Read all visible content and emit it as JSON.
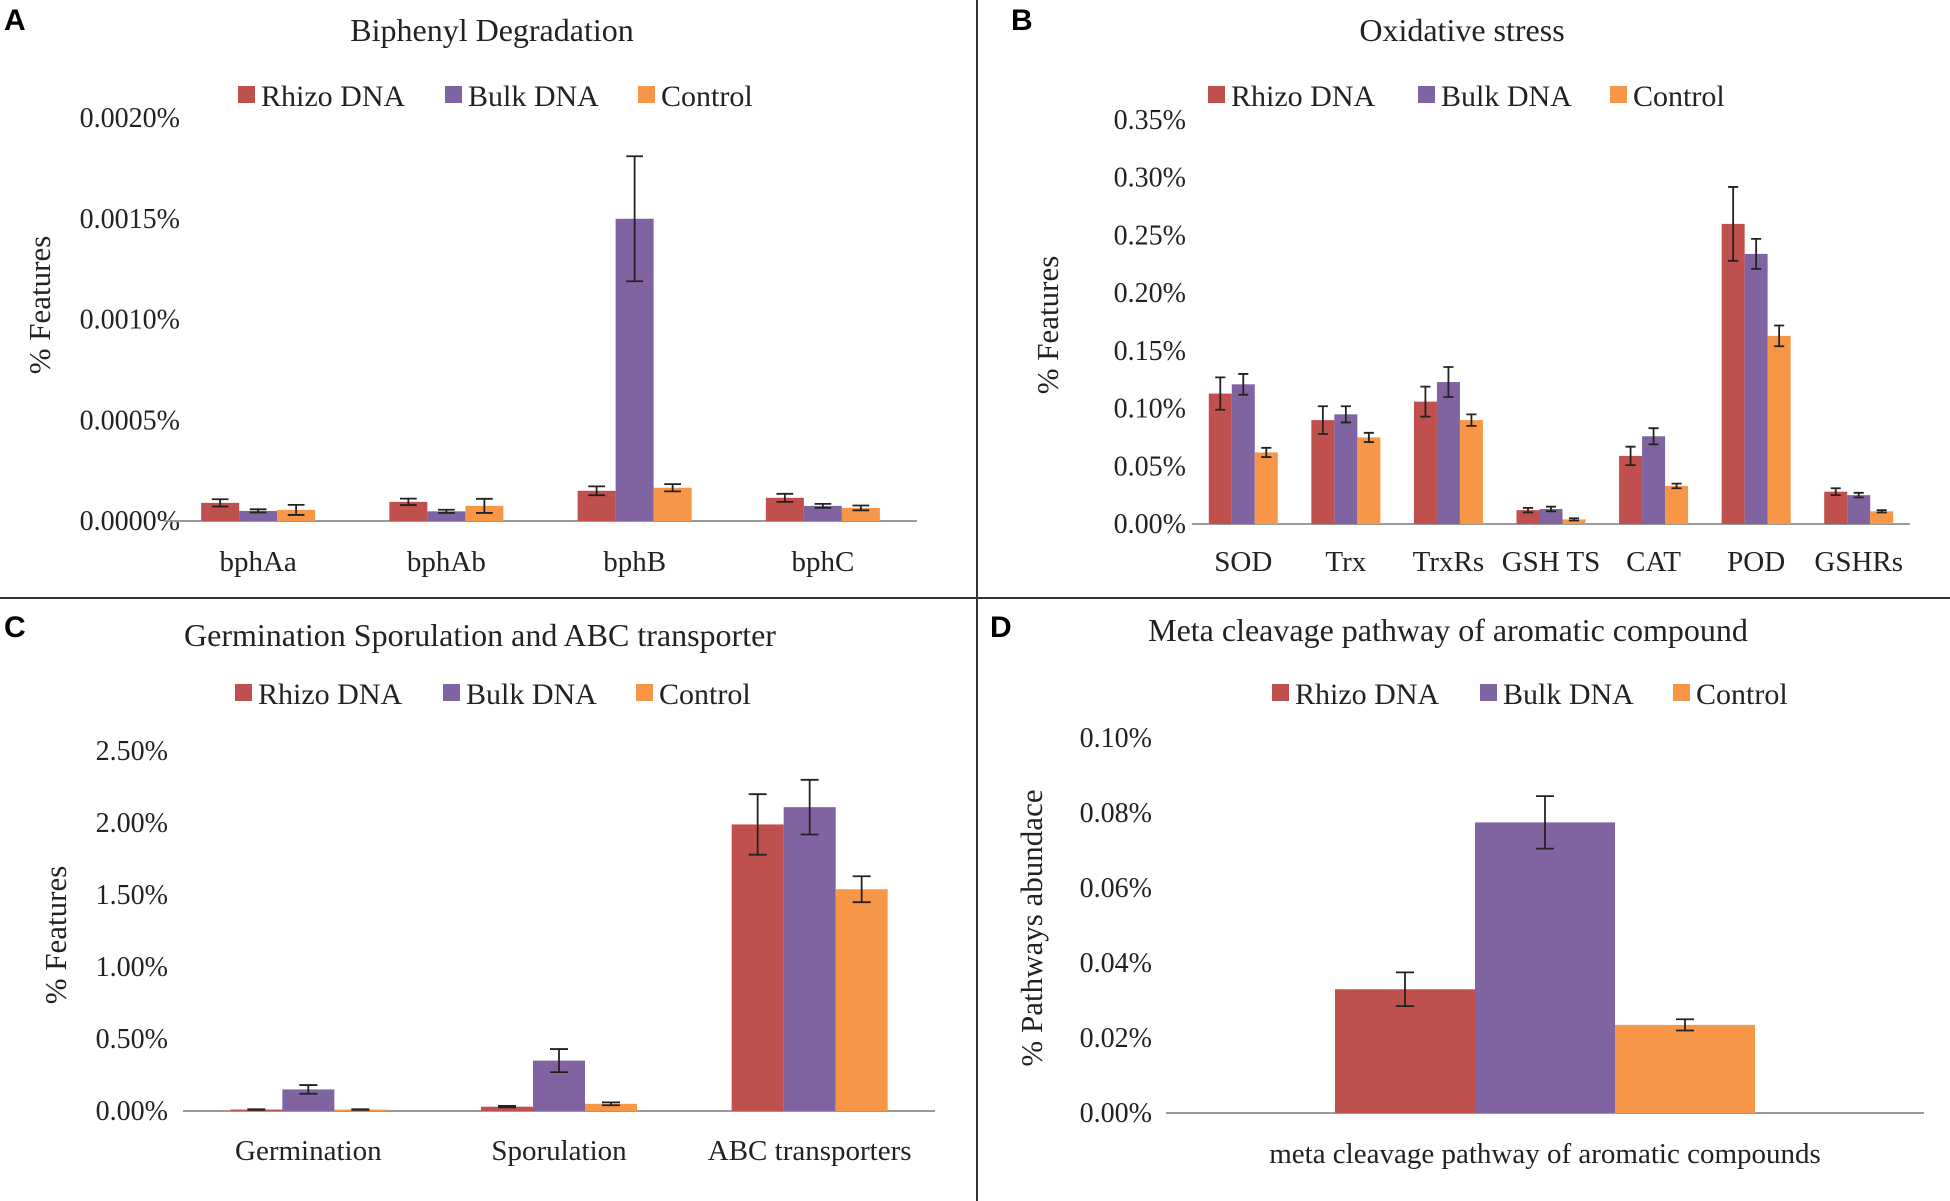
{
  "colors": {
    "rhizo": "#C0504D",
    "bulk": "#8064A2",
    "control": "#F79646"
  },
  "chart_data": [
    {
      "panel": "A",
      "type": "bar",
      "title": "Biphenyl Degradation",
      "ylabel": "% Features",
      "xlabel": "",
      "legend": [
        "Rhizo DNA",
        "Bulk DNA",
        "Control"
      ],
      "categories": [
        "bphAa",
        "bphAb",
        "bphB",
        "bphC"
      ],
      "ylim": [
        0,
        0.002
      ],
      "yticks": [
        0,
        0.0005,
        0.001,
        0.0015,
        0.002
      ],
      "ytick_labels": [
        "0.0000%",
        "0.0005%",
        "0.0010%",
        "0.0015%",
        "0.0020%"
      ],
      "series": [
        {
          "name": "Rhizo DNA",
          "values": [
            9e-05,
            9.5e-05,
            0.00015,
            0.000115
          ],
          "errors": [
            1.8e-05,
            1.6e-05,
            2.2e-05,
            2e-05
          ]
        },
        {
          "name": "Bulk DNA",
          "values": [
            5e-05,
            4.8e-05,
            0.0015,
            7.5e-05
          ],
          "errors": [
            8e-06,
            8e-06,
            0.00031,
            1e-05
          ]
        },
        {
          "name": "Control",
          "values": [
            5.5e-05,
            7.5e-05,
            0.000165,
            6.5e-05
          ],
          "errors": [
            2.5e-05,
            3.5e-05,
            1.8e-05,
            1.2e-05
          ]
        }
      ]
    },
    {
      "panel": "B",
      "type": "bar",
      "title": "Oxidative stress",
      "ylabel": "% Features",
      "xlabel": "",
      "legend": [
        "Rhizo DNA",
        "Bulk DNA",
        "Control"
      ],
      "categories": [
        "SOD",
        "Trx",
        "TrxRs",
        "GSH TS",
        "CAT",
        "POD",
        "GSHRs"
      ],
      "ylim": [
        0,
        0.35
      ],
      "yticks": [
        0,
        0.05,
        0.1,
        0.15,
        0.2,
        0.25,
        0.3,
        0.35
      ],
      "ytick_labels": [
        "0.00%",
        "0.05%",
        "0.10%",
        "0.15%",
        "0.20%",
        "0.25%",
        "0.30%",
        "0.35%"
      ],
      "series": [
        {
          "name": "Rhizo DNA",
          "values": [
            0.113,
            0.09,
            0.106,
            0.012,
            0.059,
            0.26,
            0.028
          ],
          "errors": [
            0.014,
            0.012,
            0.013,
            0.002,
            0.008,
            0.032,
            0.003
          ]
        },
        {
          "name": "Bulk DNA",
          "values": [
            0.121,
            0.095,
            0.123,
            0.013,
            0.076,
            0.234,
            0.025
          ],
          "errors": [
            0.009,
            0.007,
            0.013,
            0.002,
            0.007,
            0.013,
            0.002
          ]
        },
        {
          "name": "Control",
          "values": [
            0.062,
            0.075,
            0.09,
            0.004,
            0.033,
            0.163,
            0.011
          ],
          "errors": [
            0.004,
            0.004,
            0.005,
            0.001,
            0.002,
            0.009,
            0.001
          ]
        }
      ]
    },
    {
      "panel": "C",
      "type": "bar",
      "title": "Germination Sporulation and ABC transporter",
      "ylabel": "% Features",
      "xlabel": "",
      "legend": [
        "Rhizo DNA",
        "Bulk DNA",
        "Control"
      ],
      "categories": [
        "Germination",
        "Sporulation",
        "ABC transporters"
      ],
      "ylim": [
        0,
        0.025
      ],
      "yticks": [
        0,
        0.005,
        0.01,
        0.015,
        0.02,
        0.025
      ],
      "ytick_labels": [
        "0.00%",
        "0.50%",
        "1.00%",
        "1.50%",
        "2.00%",
        "2.50%"
      ],
      "series": [
        {
          "name": "Rhizo DNA",
          "values": [
            0.0001,
            0.0003,
            0.0199
          ],
          "errors": [
            2e-05,
            5e-05,
            0.0021
          ]
        },
        {
          "name": "Bulk DNA",
          "values": [
            0.0015,
            0.0035,
            0.0211
          ],
          "errors": [
            0.0003,
            0.0008,
            0.0019
          ]
        },
        {
          "name": "Control",
          "values": [
            0.0001,
            0.0005,
            0.0154
          ],
          "errors": [
            2e-05,
            0.0001,
            0.0009
          ]
        }
      ]
    },
    {
      "panel": "D",
      "type": "bar",
      "title": "Meta cleavage pathway of aromatic compound",
      "ylabel": "% Pathways abundace",
      "xlabel": "",
      "legend": [
        "Rhizo DNA",
        "Bulk DNA",
        "Control"
      ],
      "categories": [
        "meta cleavage pathway of aromatic compounds"
      ],
      "ylim": [
        0,
        0.1
      ],
      "yticks": [
        0,
        0.02,
        0.04,
        0.06,
        0.08,
        0.1
      ],
      "ytick_labels": [
        "0.00%",
        "0.02%",
        "0.04%",
        "0.06%",
        "0.08%",
        "0.10%"
      ],
      "series": [
        {
          "name": "Rhizo DNA",
          "values": [
            0.033
          ],
          "errors": [
            0.0045
          ]
        },
        {
          "name": "Bulk DNA",
          "values": [
            0.0775
          ],
          "errors": [
            0.007
          ]
        },
        {
          "name": "Control",
          "values": [
            0.0235
          ],
          "errors": [
            0.0015
          ]
        }
      ]
    }
  ]
}
